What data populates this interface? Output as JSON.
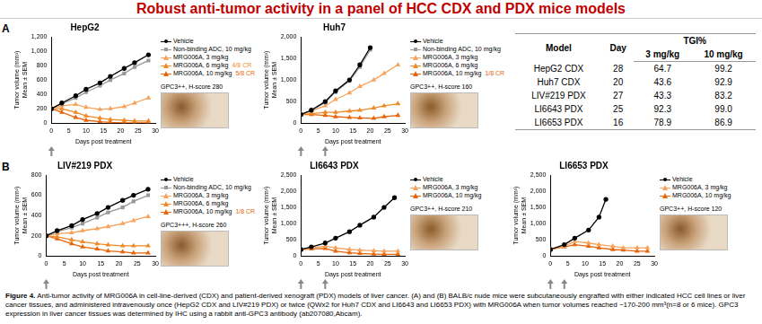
{
  "title": "Robust anti-tumor activity in a panel of HCC CDX and PDX mice models",
  "panel_labels": [
    "A",
    "B"
  ],
  "chart_data": [
    {
      "type": "line",
      "panel": "A",
      "title": "HepG2",
      "xlabel": "Days post treatment",
      "ylabel": [
        "Tumor volume (mm³)",
        "Mean ± SEM"
      ],
      "xlim": [
        0,
        30
      ],
      "xticks": [
        0,
        5,
        10,
        15,
        20,
        25,
        30
      ],
      "ylim": [
        0,
        1200
      ],
      "yticks": [
        0,
        200,
        400,
        600,
        800,
        1000,
        1200
      ],
      "grid": false,
      "legend": "right",
      "dosing_days": [
        0
      ],
      "ihc_label": "GPC3++, H-score 280",
      "series": [
        {
          "name": "Vehicle",
          "color": "#000000",
          "marker": "circle",
          "x": [
            0,
            3,
            7,
            10,
            14,
            17,
            21,
            24,
            28
          ],
          "values": [
            200,
            280,
            380,
            470,
            560,
            650,
            760,
            840,
            950
          ]
        },
        {
          "name": "Non-binding ADC, 10 mg/kg",
          "color": "#999999",
          "marker": "rect",
          "x": [
            0,
            3,
            7,
            10,
            14,
            17,
            21,
            24,
            28
          ],
          "values": [
            200,
            270,
            350,
            430,
            520,
            600,
            690,
            780,
            870
          ]
        },
        {
          "name": "MRG006A, 3 mg/kg",
          "color": "#f7a35c",
          "marker": "triangle",
          "x": [
            0,
            3,
            7,
            10,
            14,
            17,
            21,
            24,
            28
          ],
          "values": [
            200,
            240,
            260,
            220,
            190,
            200,
            230,
            280,
            350
          ]
        },
        {
          "name": "MRG006A, 6 mg/kg",
          "color": "#f08a24",
          "marker": "triangle",
          "note": "4/8 CR",
          "x": [
            0,
            3,
            7,
            10,
            14,
            17,
            21,
            24,
            28
          ],
          "values": [
            200,
            200,
            150,
            100,
            70,
            50,
            40,
            30,
            30
          ]
        },
        {
          "name": "MRG006A, 10 mg/kg",
          "color": "#e8650a",
          "marker": "triangle",
          "note": "5/8 CR",
          "x": [
            0,
            3,
            7,
            10,
            14,
            17,
            21,
            24,
            28
          ],
          "values": [
            200,
            150,
            80,
            40,
            20,
            10,
            5,
            5,
            5
          ]
        }
      ]
    },
    {
      "type": "line",
      "panel": "A",
      "title": "Huh7",
      "xlabel": "Days post treatment",
      "ylabel": [
        "Tumor volume (mm³)",
        "Mean ± SEM"
      ],
      "xlim": [
        0,
        30
      ],
      "xticks": [
        0,
        5,
        10,
        15,
        20,
        25,
        30
      ],
      "ylim": [
        0,
        2000
      ],
      "yticks": [
        0,
        500,
        1000,
        1500,
        2000
      ],
      "grid": false,
      "legend": "right",
      "dosing_days": [
        0,
        7
      ],
      "ihc_label": "GPC3++, H-score 160",
      "series": [
        {
          "name": "Vehicle",
          "color": "#000000",
          "marker": "circle",
          "x": [
            0,
            3,
            7,
            10,
            14,
            17,
            20
          ],
          "values": [
            200,
            300,
            500,
            750,
            1000,
            1350,
            1750
          ]
        },
        {
          "name": "Non-binding ADC, 10 mg/kg",
          "color": "#999999",
          "marker": "rect",
          "x": [
            0,
            3,
            7,
            10,
            14,
            17,
            20
          ],
          "values": [
            200,
            290,
            480,
            720,
            980,
            1300,
            1700
          ]
        },
        {
          "name": "MRG006A, 3 mg/kg",
          "color": "#f7a35c",
          "marker": "triangle",
          "x": [
            0,
            3,
            7,
            10,
            14,
            17,
            21,
            24,
            28
          ],
          "values": [
            200,
            280,
            400,
            550,
            700,
            850,
            1000,
            1150,
            1350
          ]
        },
        {
          "name": "MRG006A, 6 mg/kg",
          "color": "#f08a24",
          "marker": "triangle",
          "x": [
            0,
            3,
            7,
            10,
            14,
            17,
            21,
            24,
            28
          ],
          "values": [
            200,
            220,
            250,
            250,
            280,
            300,
            350,
            400,
            450
          ]
        },
        {
          "name": "MRG006A, 10 mg/kg",
          "color": "#e8650a",
          "marker": "triangle",
          "note": "1/8 CR",
          "x": [
            0,
            3,
            7,
            10,
            14,
            17,
            21,
            24,
            28
          ],
          "values": [
            200,
            200,
            180,
            150,
            130,
            120,
            110,
            150,
            180
          ]
        }
      ]
    },
    {
      "type": "line",
      "panel": "B",
      "title": "LIV#219 PDX",
      "xlabel": "Days post treatment",
      "ylabel": [
        "Tumor volume (mm³)",
        "Mean ± SEM"
      ],
      "xlim": [
        0,
        30
      ],
      "xticks": [
        0,
        5,
        10,
        15,
        20,
        25,
        30
      ],
      "ylim": [
        0,
        800
      ],
      "yticks": [
        0,
        200,
        400,
        600,
        800
      ],
      "grid": false,
      "legend": "right",
      "dosing_days": [
        0
      ],
      "ihc_label": "GPC3+++, H-score 260",
      "series": [
        {
          "name": "Vehicle",
          "color": "#000000",
          "marker": "circle",
          "x": [
            0,
            3,
            7,
            10,
            14,
            17,
            21,
            24,
            28
          ],
          "values": [
            200,
            250,
            300,
            360,
            420,
            480,
            550,
            600,
            660
          ]
        },
        {
          "name": "Non-binding ADC, 10 mg/kg",
          "color": "#999999",
          "marker": "rect",
          "x": [
            0,
            3,
            7,
            10,
            14,
            17,
            21,
            24,
            28
          ],
          "values": [
            200,
            240,
            280,
            320,
            380,
            430,
            480,
            540,
            600
          ]
        },
        {
          "name": "MRG006A, 3 mg/kg",
          "color": "#f7a35c",
          "marker": "triangle",
          "x": [
            0,
            3,
            7,
            10,
            14,
            17,
            21,
            24,
            28
          ],
          "values": [
            200,
            220,
            230,
            250,
            270,
            290,
            320,
            350,
            390
          ]
        },
        {
          "name": "MRG006A, 6 mg/kg",
          "color": "#f08a24",
          "marker": "triangle",
          "x": [
            0,
            3,
            7,
            10,
            14,
            17,
            21,
            24,
            28
          ],
          "values": [
            200,
            190,
            160,
            140,
            120,
            110,
            100,
            100,
            100
          ]
        },
        {
          "name": "MRG006A, 10 mg/kg",
          "color": "#e8650a",
          "marker": "triangle",
          "note": "1/8 CR",
          "x": [
            0,
            3,
            7,
            10,
            14,
            17,
            21,
            24,
            28
          ],
          "values": [
            200,
            170,
            120,
            90,
            70,
            50,
            40,
            30,
            30
          ]
        }
      ]
    },
    {
      "type": "line",
      "panel": "B",
      "title": "LI6643 PDX",
      "xlabel": "Days post treatment",
      "ylabel": [
        "Tumor volume (mm³)",
        "Mean ± SEM"
      ],
      "xlim": [
        0,
        30
      ],
      "xticks": [
        0,
        5,
        10,
        15,
        20,
        25,
        30
      ],
      "ylim": [
        0,
        2500
      ],
      "yticks": [
        0,
        500,
        1000,
        1500,
        2000,
        2500
      ],
      "grid": false,
      "legend": "right",
      "dosing_days": [
        0,
        7
      ],
      "ihc_label": "GPC3++, H-score 210",
      "series": [
        {
          "name": "Vehicle",
          "color": "#000000",
          "marker": "circle",
          "x": [
            0,
            3,
            7,
            10,
            14,
            17,
            21,
            24,
            27
          ],
          "values": [
            200,
            280,
            400,
            550,
            750,
            950,
            1200,
            1500,
            1800
          ]
        },
        {
          "name": "MRG006A, 3 mg/kg",
          "color": "#f7a35c",
          "marker": "triangle",
          "x": [
            0,
            3,
            7,
            10,
            14,
            17,
            21,
            24,
            28
          ],
          "values": [
            200,
            250,
            300,
            250,
            200,
            180,
            160,
            150,
            150
          ]
        },
        {
          "name": "MRG006A, 10 mg/kg",
          "color": "#e8650a",
          "marker": "triangle",
          "x": [
            0,
            3,
            7,
            10,
            14,
            17,
            21,
            24,
            28
          ],
          "values": [
            200,
            220,
            230,
            150,
            100,
            80,
            60,
            50,
            50
          ]
        }
      ]
    },
    {
      "type": "line",
      "panel": "B",
      "title": "LI6653 PDX",
      "xlabel": "Days post treatment",
      "ylabel": [
        "Tumor volume (mm³)",
        "Mean ± SEM"
      ],
      "xlim": [
        0,
        30
      ],
      "xticks": [
        0,
        5,
        10,
        15,
        20,
        25,
        30
      ],
      "ylim": [
        0,
        2500
      ],
      "yticks": [
        0,
        500,
        1000,
        1500,
        2000,
        2500
      ],
      "grid": false,
      "legend": "right",
      "dosing_days": [
        0,
        4
      ],
      "ihc_label": "GPC3++, H-score 120",
      "series": [
        {
          "name": "Vehicle",
          "color": "#000000",
          "marker": "circle",
          "x": [
            0,
            4,
            7,
            11,
            14,
            16
          ],
          "values": [
            200,
            350,
            550,
            800,
            1200,
            1750
          ]
        },
        {
          "name": "MRG006A, 3 mg/kg",
          "color": "#f7a35c",
          "marker": "triangle",
          "x": [
            0,
            4,
            7,
            11,
            14,
            18,
            21,
            25,
            28
          ],
          "values": [
            200,
            300,
            450,
            400,
            350,
            300,
            250,
            250,
            250
          ]
        },
        {
          "name": "MRG006A, 10 mg/kg",
          "color": "#e8650a",
          "marker": "triangle",
          "x": [
            0,
            4,
            7,
            11,
            14,
            18,
            21,
            25,
            28
          ],
          "values": [
            200,
            280,
            350,
            300,
            250,
            200,
            180,
            150,
            150
          ]
        }
      ]
    }
  ],
  "table": {
    "header": [
      "Model",
      "Day",
      "TGI%"
    ],
    "subheader": [
      "3 mg/kg",
      "10 mg/kg"
    ],
    "rows": [
      [
        "HepG2 CDX",
        "28",
        "64.7",
        "99.2"
      ],
      [
        "Huh7 CDX",
        "20",
        "43.6",
        "92.9"
      ],
      [
        "LIV#219 PDX",
        "27",
        "43.3",
        "83.2"
      ],
      [
        "LI6643 PDX",
        "25",
        "92.3",
        "99.0"
      ],
      [
        "LI6653 PDX",
        "16",
        "78.9",
        "86.9"
      ]
    ]
  },
  "caption": {
    "lead": "Figure 4.",
    "text": "Anti-tumor activity of MRG006A in cell-line-derived (CDX) and patient-derived xenograft (PDX) models of liver cancer. (A) and (B) BALB/c nude mice were subcutaneously engrafted with either indicated HCC cell lines or liver cancer tissues, and administered intravenously once (HepG2 CDX and LIV#219 PDX) or twice (QWx2 for Huh7 CDX and LI6643 and LI6653 PDX) with MRG006A when tumor volumes reached ~170-200 mm³(n=8 or 6 mice). GPC3 expression in liver cancer tissues was determined by IHC using a rabbit anti-GPC3 antibody (ab207080,Abcam)."
  }
}
